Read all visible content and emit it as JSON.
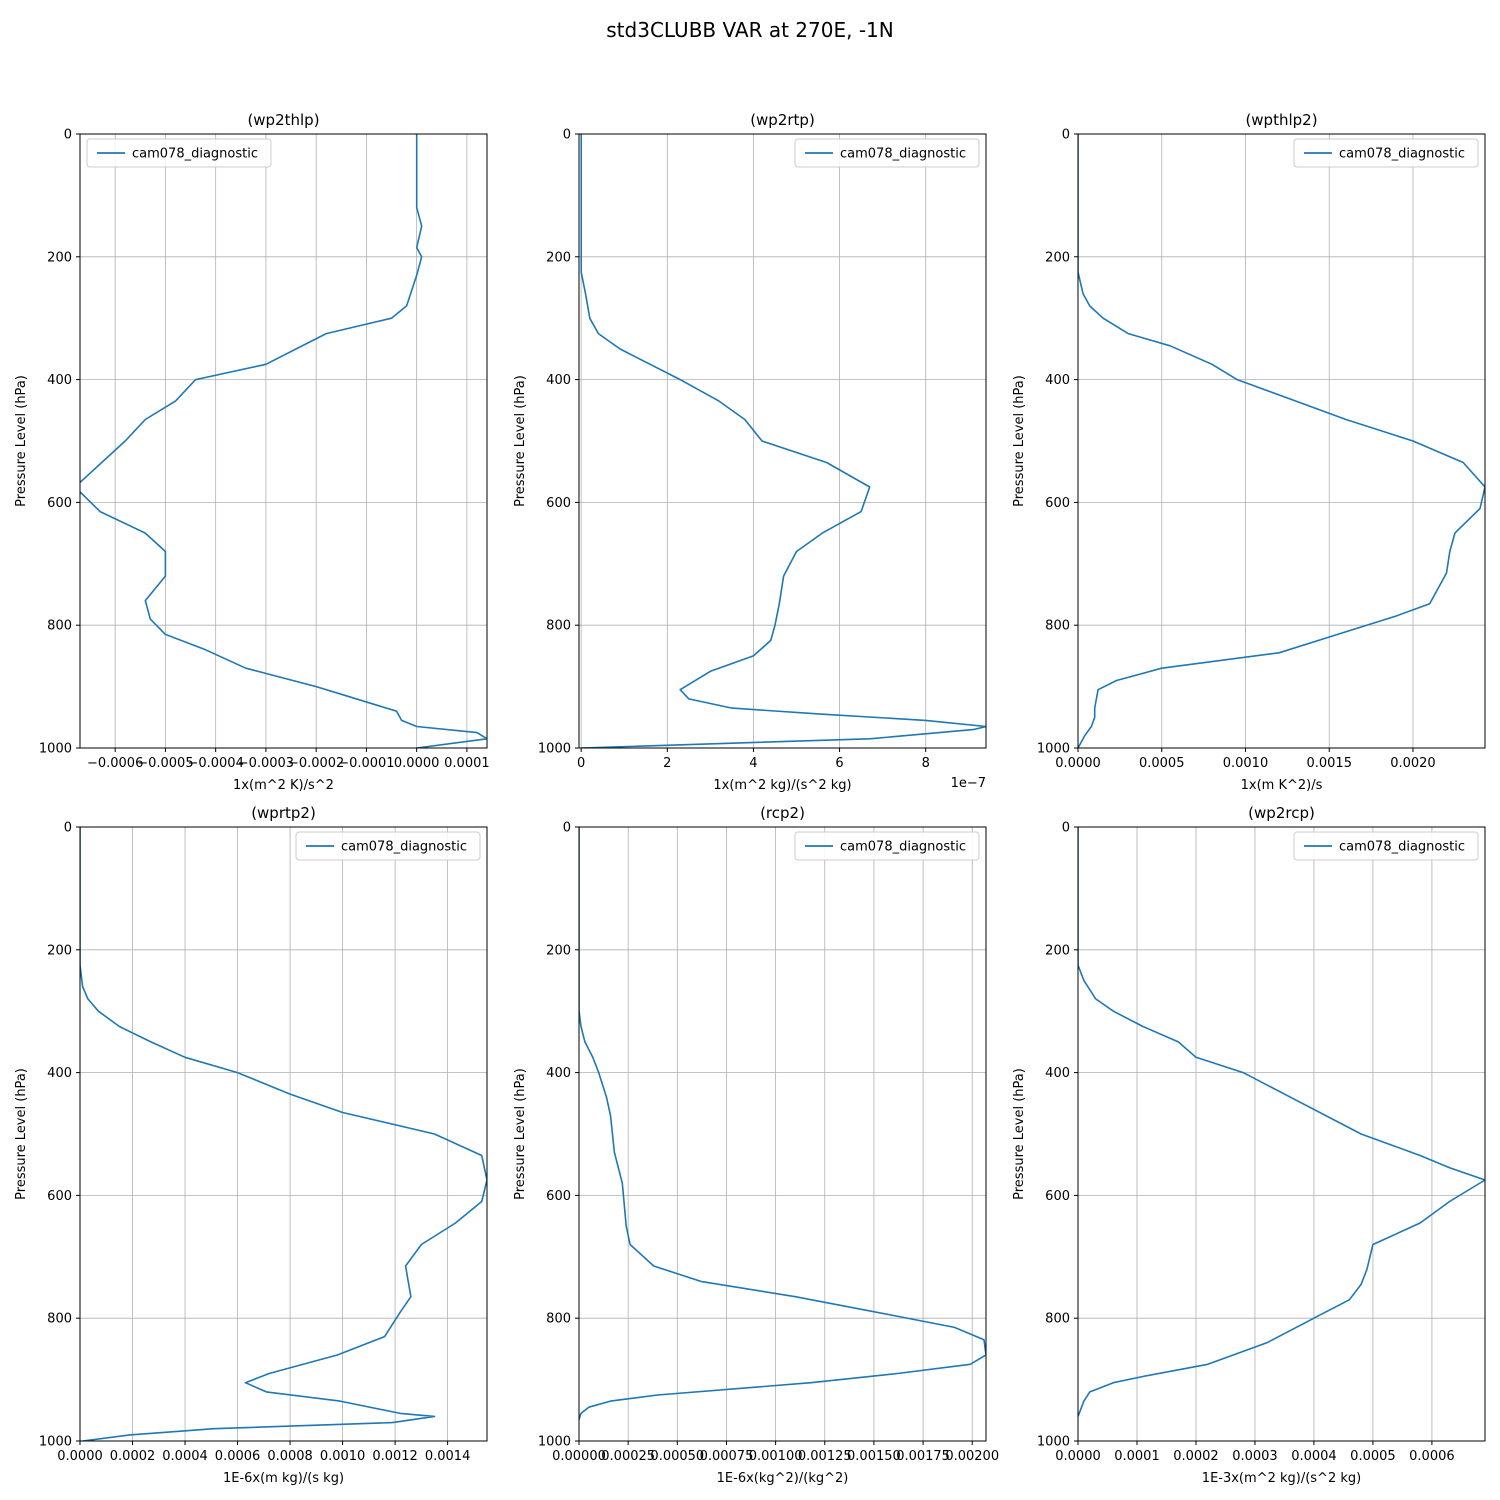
{
  "figure": {
    "title": "std3CLUBB VAR at 270E, -1N"
  },
  "chart_data": [
    {
      "type": "line",
      "title": "(wp2thlp)",
      "xlabel": "1x(m^2 K)/s^2",
      "ylabel": "Pressure Level (hPa)",
      "xlim": [
        -0.00067,
        0.00014
      ],
      "ylim": [
        1000,
        0
      ],
      "x_ticks": [
        "−0.0006",
        "−0.0005",
        "−0.0004",
        "−0.0003",
        "−0.0002",
        "−0.0001",
        "0.0000",
        "0.0001"
      ],
      "x_tick_values": [
        -0.0006,
        -0.0005,
        -0.0004,
        -0.0003,
        -0.0002,
        -0.0001,
        0.0,
        0.0001
      ],
      "y_ticks": [
        "0",
        "200",
        "400",
        "600",
        "800",
        "1000"
      ],
      "y_tick_values": [
        0,
        200,
        400,
        600,
        800,
        1000
      ],
      "offset_text": "",
      "grid": true,
      "legend": {
        "position": "upper left",
        "entries": [
          "cam078_diagnostic"
        ]
      },
      "series": [
        {
          "name": "cam078_diagnostic",
          "color": "#1f77b4",
          "x": [
            0.0,
            0.0,
            0.0,
            1e-05,
            0.0,
            1e-05,
            0.0,
            -2e-05,
            -5e-05,
            -0.00018,
            -0.0003,
            -0.00044,
            -0.00048,
            -0.00054,
            -0.00058,
            -0.00068,
            -0.00063,
            -0.00054,
            -0.0005,
            -0.0005,
            -0.00054,
            -0.00053,
            -0.0005,
            -0.00042,
            -0.00034,
            -0.0002,
            -0.00014,
            -4e-05,
            -3e-05,
            0.0,
            0.00012,
            0.00014,
            0.0
          ],
          "y": [
            0,
            100,
            120,
            150,
            185,
            200,
            230,
            280,
            300,
            325,
            375,
            400,
            435,
            465,
            500,
            575,
            615,
            650,
            680,
            720,
            760,
            790,
            815,
            840,
            870,
            900,
            915,
            940,
            955,
            965,
            975,
            985,
            1000
          ]
        }
      ]
    },
    {
      "type": "line",
      "title": "(wp2rtp)",
      "xlabel": "1x(m^2 kg)/(s^2 kg)",
      "ylabel": "Pressure Level (hPa)",
      "xlim": [
        -0.05,
        9.4
      ],
      "ylim": [
        1000,
        0
      ],
      "x_ticks": [
        "0",
        "2",
        "4",
        "6",
        "8"
      ],
      "x_tick_values": [
        0,
        2,
        4,
        6,
        8
      ],
      "y_ticks": [
        "0",
        "200",
        "400",
        "600",
        "800",
        "1000"
      ],
      "y_tick_values": [
        0,
        200,
        400,
        600,
        800,
        1000
      ],
      "offset_text": "1e−7",
      "grid": true,
      "legend": {
        "position": "upper right",
        "entries": [
          "cam078_diagnostic"
        ]
      },
      "series": [
        {
          "name": "cam078_diagnostic",
          "color": "#1f77b4",
          "x": [
            0.0,
            0.0,
            0.0,
            0.0,
            0.1,
            0.2,
            0.4,
            0.9,
            2.3,
            3.2,
            3.8,
            4.2,
            5.7,
            6.7,
            6.5,
            5.6,
            5.0,
            4.7,
            4.6,
            4.5,
            4.4,
            4.0,
            3.0,
            2.3,
            2.5,
            3.5,
            5.6,
            8.0,
            9.4,
            9.1,
            6.7,
            0.0
          ],
          "y": [
            0,
            100,
            200,
            225,
            260,
            300,
            325,
            350,
            400,
            435,
            465,
            500,
            535,
            575,
            615,
            650,
            680,
            720,
            765,
            800,
            825,
            850,
            875,
            905,
            920,
            935,
            945,
            955,
            965,
            970,
            985,
            1000
          ]
        }
      ]
    },
    {
      "type": "line",
      "title": "(wpthlp2)",
      "xlabel": "1x(m K^2)/s",
      "ylabel": "Pressure Level (hPa)",
      "xlim": [
        0,
        0.00243
      ],
      "ylim": [
        1000,
        0
      ],
      "x_ticks": [
        "0.0000",
        "0.0005",
        "0.0010",
        "0.0015",
        "0.0020"
      ],
      "x_tick_values": [
        0.0,
        0.0005,
        0.001,
        0.0015,
        0.002
      ],
      "y_ticks": [
        "0",
        "200",
        "400",
        "600",
        "800",
        "1000"
      ],
      "y_tick_values": [
        0,
        200,
        400,
        600,
        800,
        1000
      ],
      "offset_text": "",
      "grid": true,
      "legend": {
        "position": "upper right",
        "entries": [
          "cam078_diagnostic"
        ]
      },
      "series": [
        {
          "name": "cam078_diagnostic",
          "color": "#1f77b4",
          "x": [
            0.0,
            0.0,
            0.0,
            3e-05,
            7e-05,
            0.00015,
            0.0003,
            0.00055,
            0.0008,
            0.00095,
            0.00125,
            0.0016,
            0.002,
            0.0023,
            0.00243,
            0.0024,
            0.00225,
            0.00222,
            0.0022,
            0.00215,
            0.0021,
            0.0019,
            0.00155,
            0.0012,
            0.0005,
            0.00023,
            0.00012,
            0.00011,
            0.0001,
            0.0001,
            8e-05,
            4e-05,
            0.0
          ],
          "y": [
            0,
            200,
            225,
            260,
            280,
            300,
            325,
            345,
            375,
            400,
            430,
            465,
            500,
            535,
            575,
            610,
            650,
            680,
            715,
            740,
            765,
            785,
            815,
            845,
            870,
            890,
            905,
            920,
            935,
            950,
            965,
            980,
            1000
          ]
        }
      ]
    },
    {
      "type": "line",
      "title": "(wprtp2)",
      "xlabel": "1E-6x(m kg)/(s kg)",
      "ylabel": "Pressure Level (hPa)",
      "xlim": [
        0,
        0.00155
      ],
      "ylim": [
        1000,
        0
      ],
      "x_ticks": [
        "0.0000",
        "0.0002",
        "0.0004",
        "0.0006",
        "0.0008",
        "0.0010",
        "0.0012",
        "0.0014"
      ],
      "x_tick_values": [
        0.0,
        0.0002,
        0.0004,
        0.0006,
        0.0008,
        0.001,
        0.0012,
        0.0014
      ],
      "y_ticks": [
        "0",
        "200",
        "400",
        "600",
        "800",
        "1000"
      ],
      "y_tick_values": [
        0,
        200,
        400,
        600,
        800,
        1000
      ],
      "offset_text": "",
      "grid": true,
      "legend": {
        "position": "upper right",
        "entries": [
          "cam078_diagnostic"
        ]
      },
      "series": [
        {
          "name": "cam078_diagnostic",
          "color": "#1f77b4",
          "x": [
            0.0,
            0.0,
            1e-05,
            3e-05,
            7e-05,
            0.00015,
            0.00027,
            0.0004,
            0.0006,
            0.0008,
            0.001,
            0.00135,
            0.00153,
            0.00155,
            0.00153,
            0.00143,
            0.0013,
            0.00124,
            0.00125,
            0.00126,
            0.00122,
            0.00116,
            0.00098,
            0.00072,
            0.00063,
            0.00071,
            0.00099,
            0.00122,
            0.00135,
            0.00119,
            0.00051,
            0.00019,
            1e-05
          ],
          "y": [
            0,
            225,
            260,
            280,
            300,
            325,
            350,
            375,
            400,
            435,
            465,
            500,
            535,
            575,
            610,
            645,
            680,
            715,
            740,
            765,
            790,
            830,
            860,
            890,
            905,
            920,
            935,
            955,
            960,
            970,
            980,
            990,
            1000
          ]
        }
      ]
    },
    {
      "type": "line",
      "title": "(rcp2)",
      "xlabel": "1E-6x(kg^2)/(kg^2)",
      "ylabel": "Pressure Level (hPa)",
      "xlim": [
        0,
        0.00207
      ],
      "ylim": [
        1000,
        0
      ],
      "x_ticks": [
        "0.00000",
        "0.00025",
        "0.00050",
        "0.00075",
        "0.00100",
        "0.00125",
        "0.00150",
        "0.00175",
        "0.00200"
      ],
      "x_tick_values": [
        0.0,
        0.00025,
        0.0005,
        0.00075,
        0.001,
        0.00125,
        0.0015,
        0.00175,
        0.002
      ],
      "y_ticks": [
        "0",
        "200",
        "400",
        "600",
        "800",
        "1000"
      ],
      "y_tick_values": [
        0,
        200,
        400,
        600,
        800,
        1000
      ],
      "offset_text": "",
      "grid": true,
      "legend": {
        "position": "upper right",
        "entries": [
          "cam078_diagnostic"
        ]
      },
      "series": [
        {
          "name": "cam078_diagnostic",
          "color": "#1f77b4",
          "x": [
            0.0,
            0.0,
            1e-05,
            3e-05,
            7e-05,
            0.0001,
            0.00014,
            0.00016,
            0.00018,
            0.00022,
            0.00024,
            0.00026,
            0.00038,
            0.00062,
            0.0011,
            0.00159,
            0.00191,
            0.00206,
            0.00207,
            0.00199,
            0.00162,
            0.00118,
            0.0004,
            0.00016,
            5e-05,
            1e-05,
            0.0
          ],
          "y": [
            0,
            300,
            325,
            350,
            375,
            400,
            440,
            470,
            530,
            580,
            650,
            680,
            715,
            740,
            765,
            795,
            815,
            835,
            860,
            875,
            890,
            905,
            925,
            935,
            945,
            955,
            965
          ]
        }
      ]
    },
    {
      "type": "line",
      "title": "(wp2rcp)",
      "xlabel": "1E-3x(m^2 kg)/(s^2 kg)",
      "ylabel": "Pressure Level (hPa)",
      "xlim": [
        0,
        0.00069
      ],
      "ylim": [
        1000,
        0
      ],
      "x_ticks": [
        "0.0000",
        "0.0001",
        "0.0002",
        "0.0003",
        "0.0004",
        "0.0005",
        "0.0006"
      ],
      "x_tick_values": [
        0.0,
        0.0001,
        0.0002,
        0.0003,
        0.0004,
        0.0005,
        0.0006
      ],
      "y_ticks": [
        "0",
        "200",
        "400",
        "600",
        "800",
        "1000"
      ],
      "y_tick_values": [
        0,
        200,
        400,
        600,
        800,
        1000
      ],
      "offset_text": "",
      "grid": true,
      "legend": {
        "position": "upper right",
        "entries": [
          "cam078_diagnostic"
        ]
      },
      "series": [
        {
          "name": "cam078_diagnostic",
          "color": "#1f77b4",
          "x": [
            0.0,
            0.0,
            1e-05,
            3e-05,
            6e-05,
            0.00011,
            0.00017,
            0.0002,
            0.00028,
            0.00035,
            0.00048,
            0.00058,
            0.00063,
            0.00069,
            0.00063,
            0.00058,
            0.0005,
            0.00049,
            0.00048,
            0.00046,
            0.00041,
            0.00037,
            0.00032,
            0.00022,
            0.00011,
            6e-05,
            2e-05,
            1e-05,
            0.0
          ],
          "y": [
            0,
            225,
            250,
            280,
            300,
            325,
            350,
            375,
            400,
            435,
            500,
            535,
            555,
            575,
            610,
            645,
            680,
            720,
            745,
            770,
            795,
            815,
            840,
            875,
            895,
            905,
            920,
            935,
            960
          ]
        }
      ]
    }
  ]
}
